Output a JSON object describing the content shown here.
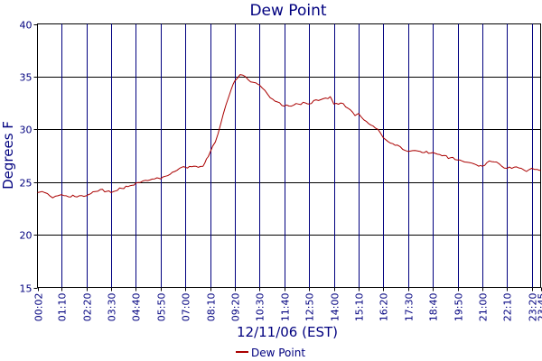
{
  "chart_data": {
    "type": "line",
    "title": "Dew Point",
    "xlabel": "12/11/06 (EST)",
    "ylabel": "Degrees F",
    "ylim": [
      15,
      40
    ],
    "yticks": [
      15,
      20,
      25,
      30,
      35,
      40
    ],
    "grid": true,
    "legend": "bottom-center",
    "x_ticks": [
      "00:02",
      "01:10",
      "02:20",
      "03:30",
      "04:40",
      "05:50",
      "07:00",
      "08:10",
      "09:20",
      "10:30",
      "11:40",
      "12:50",
      "14:00",
      "15:10",
      "16:20",
      "17:30",
      "18:40",
      "19:50",
      "21:00",
      "22:10",
      "23:20",
      "23:45"
    ],
    "x_range": [
      "00:02",
      "23:45"
    ],
    "series": [
      {
        "name": "Dew Point",
        "color": "#aa0000",
        "points": [
          [
            "00:02",
            24.0
          ],
          [
            "00:15",
            24.1
          ],
          [
            "00:30",
            23.9
          ],
          [
            "00:45",
            23.5
          ],
          [
            "01:00",
            23.7
          ],
          [
            "01:10",
            23.8
          ],
          [
            "01:30",
            23.6
          ],
          [
            "02:00",
            23.7
          ],
          [
            "02:20",
            23.7
          ],
          [
            "02:45",
            24.1
          ],
          [
            "03:00",
            24.3
          ],
          [
            "03:30",
            24.0
          ],
          [
            "04:00",
            24.4
          ],
          [
            "04:30",
            24.7
          ],
          [
            "04:40",
            24.9
          ],
          [
            "05:00",
            25.1
          ],
          [
            "05:20",
            25.2
          ],
          [
            "05:40",
            25.4
          ],
          [
            "05:50",
            25.3
          ],
          [
            "06:10",
            25.6
          ],
          [
            "06:30",
            26.0
          ],
          [
            "06:50",
            26.4
          ],
          [
            "07:00",
            26.4
          ],
          [
            "07:30",
            26.5
          ],
          [
            "07:50",
            26.5
          ],
          [
            "08:00",
            27.2
          ],
          [
            "08:10",
            27.8
          ],
          [
            "08:25",
            28.8
          ],
          [
            "08:40",
            30.5
          ],
          [
            "08:55",
            32.3
          ],
          [
            "09:10",
            33.8
          ],
          [
            "09:20",
            34.6
          ],
          [
            "09:35",
            35.2
          ],
          [
            "09:50",
            35.0
          ],
          [
            "10:05",
            34.5
          ],
          [
            "10:20",
            34.4
          ],
          [
            "10:30",
            34.2
          ],
          [
            "10:45",
            33.7
          ],
          [
            "11:00",
            33.0
          ],
          [
            "11:20",
            32.6
          ],
          [
            "11:40",
            32.2
          ],
          [
            "12:00",
            32.2
          ],
          [
            "12:20",
            32.4
          ],
          [
            "12:40",
            32.5
          ],
          [
            "12:50",
            32.4
          ],
          [
            "13:10",
            32.8
          ],
          [
            "13:30",
            32.9
          ],
          [
            "13:50",
            33.1
          ],
          [
            "14:00",
            32.4
          ],
          [
            "14:20",
            32.5
          ],
          [
            "14:40",
            32.0
          ],
          [
            "15:00",
            31.3
          ],
          [
            "15:10",
            31.5
          ],
          [
            "15:25",
            30.9
          ],
          [
            "15:45",
            30.4
          ],
          [
            "16:05",
            30.0
          ],
          [
            "16:20",
            29.2
          ],
          [
            "16:40",
            28.7
          ],
          [
            "17:00",
            28.5
          ],
          [
            "17:15",
            28.1
          ],
          [
            "17:30",
            27.9
          ],
          [
            "17:50",
            28.0
          ],
          [
            "18:10",
            27.8
          ],
          [
            "18:40",
            27.8
          ],
          [
            "19:00",
            27.6
          ],
          [
            "19:30",
            27.3
          ],
          [
            "19:50",
            27.1
          ],
          [
            "20:10",
            26.9
          ],
          [
            "20:30",
            26.8
          ],
          [
            "20:50",
            26.5
          ],
          [
            "21:00",
            26.5
          ],
          [
            "21:20",
            27.0
          ],
          [
            "21:40",
            26.9
          ],
          [
            "21:55",
            26.5
          ],
          [
            "22:10",
            26.3
          ],
          [
            "22:30",
            26.4
          ],
          [
            "22:50",
            26.3
          ],
          [
            "23:05",
            26.0
          ],
          [
            "23:20",
            26.3
          ],
          [
            "23:35",
            26.2
          ],
          [
            "23:45",
            26.1
          ]
        ]
      }
    ]
  }
}
